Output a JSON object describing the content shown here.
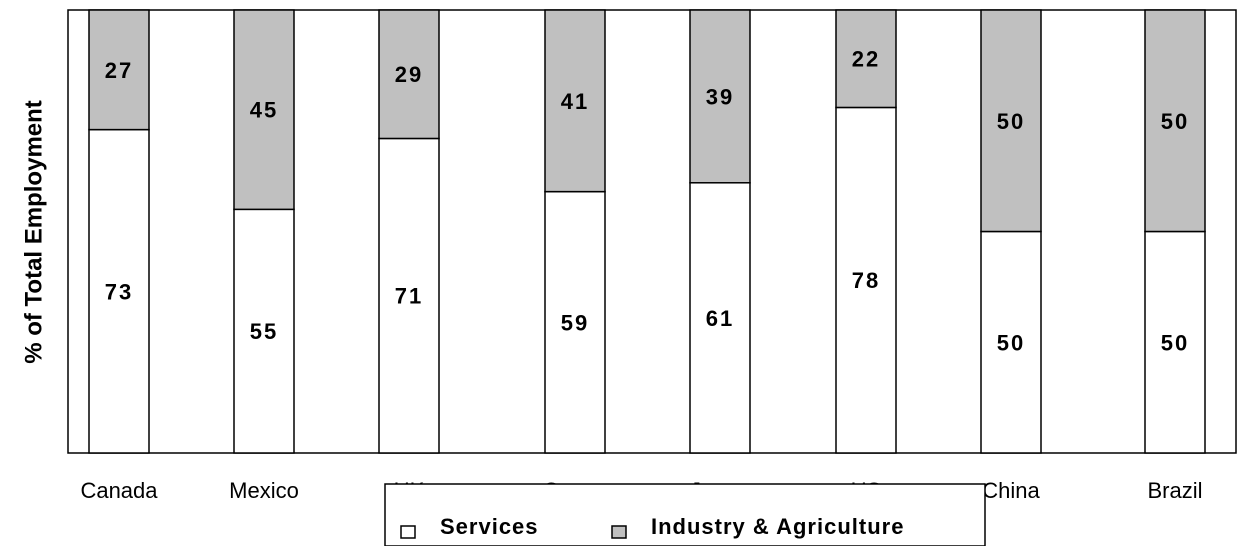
{
  "chart_data": {
    "type": "bar",
    "stacked": true,
    "title": "",
    "xlabel": "",
    "ylabel": "% of Total Employment",
    "ylim": [
      0,
      100
    ],
    "grid": false,
    "legend_position": "bottom",
    "categories": [
      "Canada",
      "Mexico",
      "UK",
      "Germany",
      "Japan",
      "US",
      "China",
      "Brazil"
    ],
    "series": [
      {
        "name": "Services",
        "color": "#ffffff",
        "values": [
          73,
          55,
          71,
          59,
          61,
          78,
          50,
          50
        ]
      },
      {
        "name": "Industry & Agriculture",
        "color": "#c0c0c0",
        "values": [
          27,
          45,
          29,
          41,
          39,
          22,
          50,
          50
        ]
      }
    ]
  }
}
